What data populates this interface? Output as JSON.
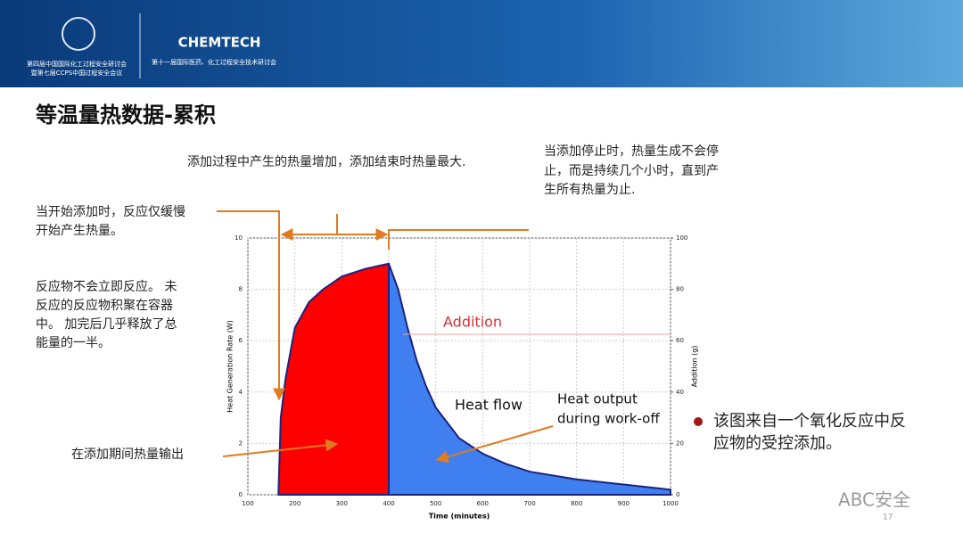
{
  "slide": {
    "header_left": [
      "第四届中国国际化工过程安全研讨会",
      "暨第七届CCPS中国过程安全会议"
    ],
    "header_brand": "CHEMTECH",
    "header_right": "第十一届国际医药、化工过程安全技术研讨会",
    "title": "等温量热数据-累积",
    "note_top": "添加过程中产生的热量增加，添加结束时热量最大.",
    "note_right": [
      "当添加停止时，热量生成不会停",
      "止，而是持续几个小时，直到产",
      "生所有热量为止."
    ],
    "note_start": [
      "当开始添加时，反应仅缓慢",
      "开始产生热量。"
    ],
    "note_accum": [
      "反应物不会立即反应。 未",
      "反应的反应物积聚在容器",
      "中。 加完后几乎释放了总",
      "能量的一半。"
    ],
    "note_during": "在添加期间热量输出",
    "bullet": [
      "该图来自一个氧化反应中反",
      "应物的受控添加。"
    ],
    "watermark": "ABC安全",
    "page": "17"
  },
  "chart_data": {
    "type": "area",
    "x_label": "Time (minutes)",
    "y_label": "Heat Generation Rate (W)",
    "y2_label": "Addition (g)",
    "annotations": [
      "Addition",
      "Heat flow",
      "Heat output",
      "during work-off"
    ],
    "xlim": [
      100,
      1000
    ],
    "xticks": [
      100,
      200,
      300,
      400,
      500,
      600,
      700,
      800,
      900,
      1000
    ],
    "ylim": [
      0,
      10
    ],
    "yticks": [
      0,
      2,
      4,
      6,
      8,
      10
    ],
    "y2lim": [
      0,
      100
    ],
    "y2ticks": [
      0,
      20,
      40,
      60,
      80,
      100
    ],
    "series": [
      {
        "color": "#ff0000",
        "x": [
          165,
          170,
          180,
          200,
          230,
          260,
          300,
          350,
          400
        ],
        "values": [
          0,
          3,
          4.5,
          6.5,
          7.5,
          8,
          8.5,
          8.8,
          9
        ]
      },
      {
        "color": "#3f7ff0",
        "x": [
          400,
          420,
          440,
          460,
          480,
          500,
          550,
          600,
          650,
          700,
          800,
          900,
          1000
        ],
        "values": [
          9,
          8,
          6.5,
          5.2,
          4.2,
          3.4,
          2.2,
          1.6,
          1.2,
          0.9,
          0.6,
          0.4,
          0.2
        ]
      },
      {
        "color": "#f2a0a0",
        "axis": "y2",
        "x": [
          430,
          1000
        ],
        "values": [
          62.5,
          62.5
        ]
      }
    ]
  }
}
